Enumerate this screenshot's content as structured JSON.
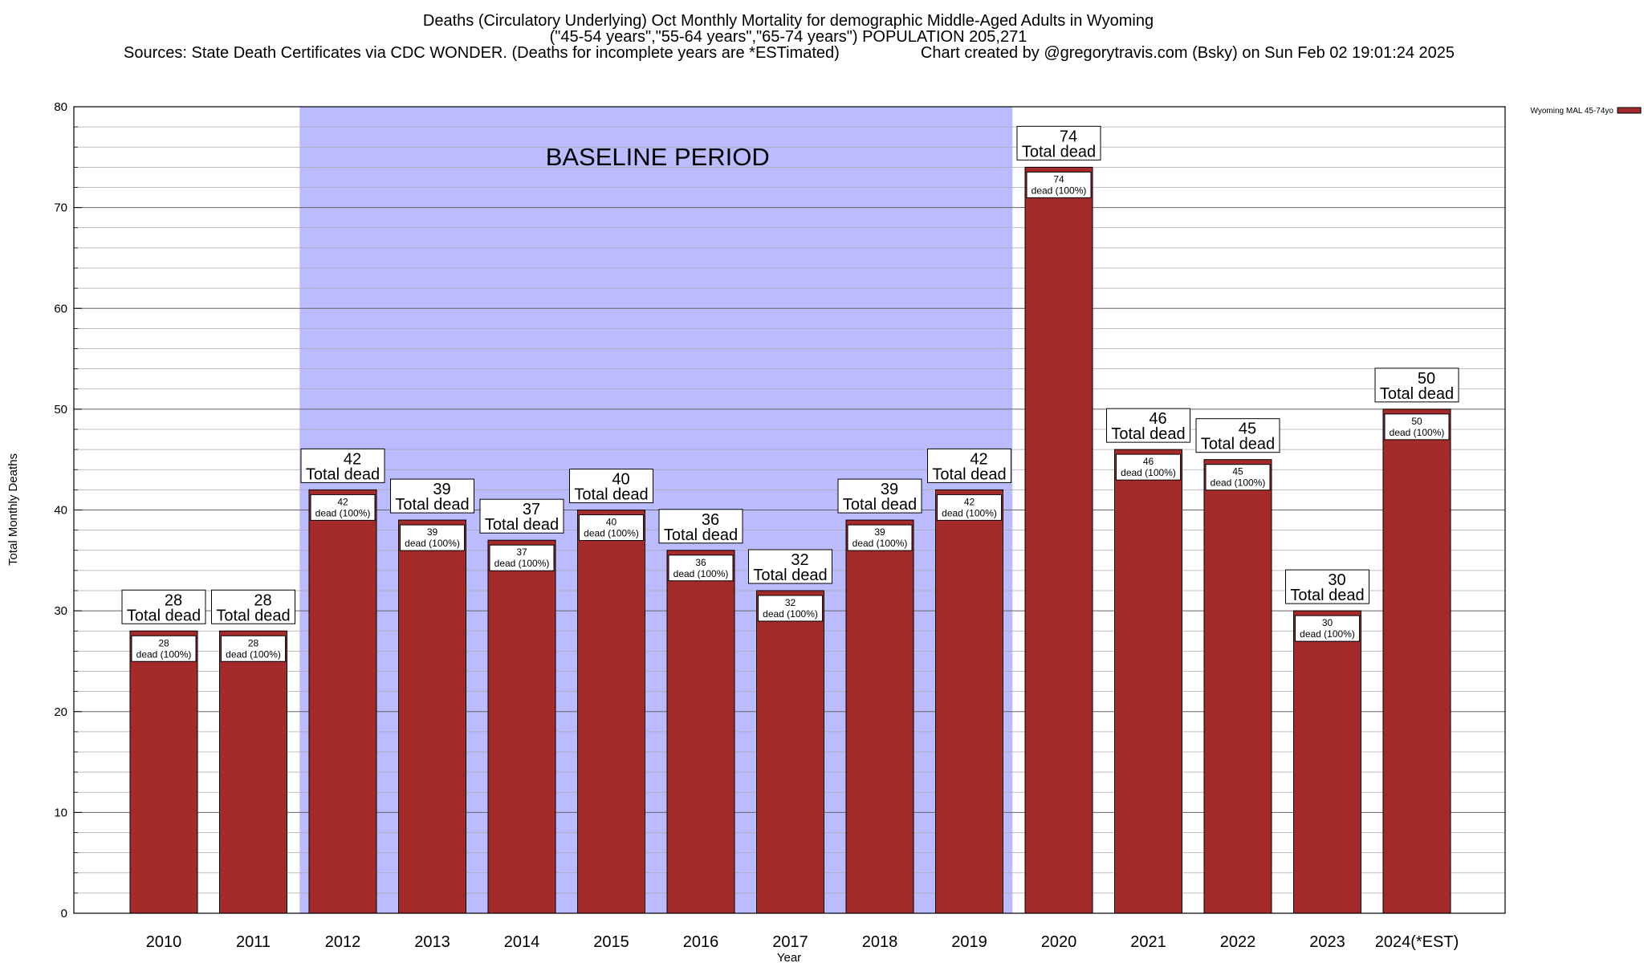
{
  "header": {
    "title_line1": "Deaths (Circulatory Underlying) Oct Monthly Mortality for demographic Middle-Aged Adults in Wyoming",
    "title_line2": "(\"45-54 years\",\"55-64 years\",\"65-74 years\") POPULATION 205,271",
    "sources": "Sources: State Death Certificates via CDC WONDER. (Deaths for incomplete years are *ESTimated)",
    "credit": "Chart created by @gregorytravis.com (Bsky) on Sun Feb 02 19:01:24 2025"
  },
  "chart_data": {
    "type": "bar",
    "title": "Deaths (Circulatory Underlying) Oct Monthly Mortality for demographic Middle-Aged Adults in Wyoming",
    "xlabel": "Year",
    "ylabel": "Total Monthly Deaths",
    "ylim": [
      0,
      80
    ],
    "yticks": [
      0,
      10,
      20,
      30,
      40,
      50,
      60,
      70,
      80
    ],
    "grid": true,
    "categories": [
      "2010",
      "2011",
      "2012",
      "2013",
      "2014",
      "2015",
      "2016",
      "2017",
      "2018",
      "2019",
      "2020",
      "2021",
      "2022",
      "2023",
      "2024(*EST)"
    ],
    "series": [
      {
        "name": "Wyoming MAL 45-74yo",
        "color": "#a52a2a",
        "values": [
          28,
          28,
          42,
          39,
          37,
          40,
          36,
          32,
          39,
          42,
          74,
          46,
          45,
          30,
          50
        ]
      }
    ],
    "total_label_suffix": "Total dead",
    "inner_label_suffix": "dead (100%)",
    "legend_placement": "top-right",
    "shaded_region": {
      "label": "BASELINE PERIOD",
      "from": "2012",
      "to": "2019",
      "color": "#bbbbff"
    }
  }
}
